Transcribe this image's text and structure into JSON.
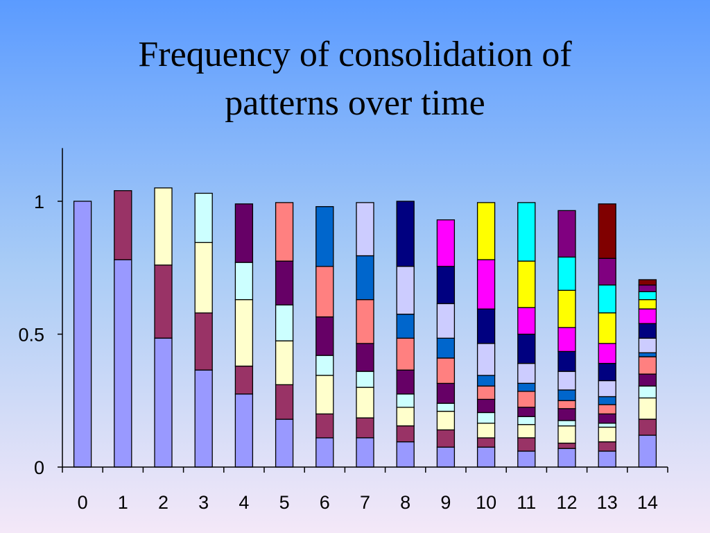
{
  "title_lines": [
    "Frequency of consolidation of",
    "patterns over time"
  ],
  "chart_data": {
    "type": "bar",
    "stacked": true,
    "title": "Frequency of consolidation of patterns over time",
    "xlabel": "",
    "ylabel": "",
    "categories": [
      "0",
      "1",
      "2",
      "3",
      "4",
      "5",
      "6",
      "7",
      "8",
      "9",
      "10",
      "11",
      "12",
      "13",
      "14"
    ],
    "ylim": [
      0,
      1.2
    ],
    "yticks": [
      0,
      0.5,
      1
    ],
    "ytick_labels": [
      "0",
      "0.5",
      "1"
    ],
    "grid": false,
    "legend": "none",
    "segment_colors": [
      "#9999ff",
      "#993366",
      "#ffffcc",
      "#ccffff",
      "#660066",
      "#ff8080",
      "#0066cc",
      "#ccccff",
      "#000080",
      "#ff00ff",
      "#ffff00",
      "#00ffff",
      "#800080",
      "#800000"
    ],
    "stacks": [
      [
        1.0
      ],
      [
        0.78,
        0.26
      ],
      [
        0.485,
        0.275,
        0.29
      ],
      [
        0.365,
        0.215,
        0.265,
        0.185
      ],
      [
        0.275,
        0.105,
        0.25,
        0.14,
        0.22
      ],
      [
        0.18,
        0.13,
        0.165,
        0.135,
        0.165,
        0.22
      ],
      [
        0.11,
        0.09,
        0.145,
        0.075,
        0.145,
        0.19,
        0.225
      ],
      [
        0.11,
        0.075,
        0.115,
        0.06,
        0.105,
        0.165,
        0.165,
        0.2
      ],
      [
        0.095,
        0.06,
        0.07,
        0.05,
        0.09,
        0.12,
        0.09,
        0.18,
        0.245
      ],
      [
        0.075,
        0.065,
        0.07,
        0.03,
        0.075,
        0.095,
        0.075,
        0.13,
        0.14,
        0.175
      ],
      [
        0.075,
        0.035,
        0.055,
        0.04,
        0.05,
        0.05,
        0.04,
        0.12,
        0.13,
        0.185,
        0.215
      ],
      [
        0.06,
        0.05,
        0.05,
        0.03,
        0.035,
        0.06,
        0.03,
        0.075,
        0.11,
        0.1,
        0.175,
        0.22
      ],
      [
        0.07,
        0.02,
        0.065,
        0.02,
        0.045,
        0.03,
        0.04,
        0.07,
        0.075,
        0.09,
        0.14,
        0.125,
        0.175
      ],
      [
        0.06,
        0.035,
        0.055,
        0.015,
        0.035,
        0.035,
        0.03,
        0.06,
        0.065,
        0.075,
        0.115,
        0.105,
        0.1,
        0.205
      ],
      [
        0.12,
        0.06,
        0.08,
        0.045,
        0.045,
        0.065,
        0.015,
        0.055,
        0.055,
        0.055,
        0.035,
        0.03,
        0.025,
        0.02
      ]
    ]
  }
}
